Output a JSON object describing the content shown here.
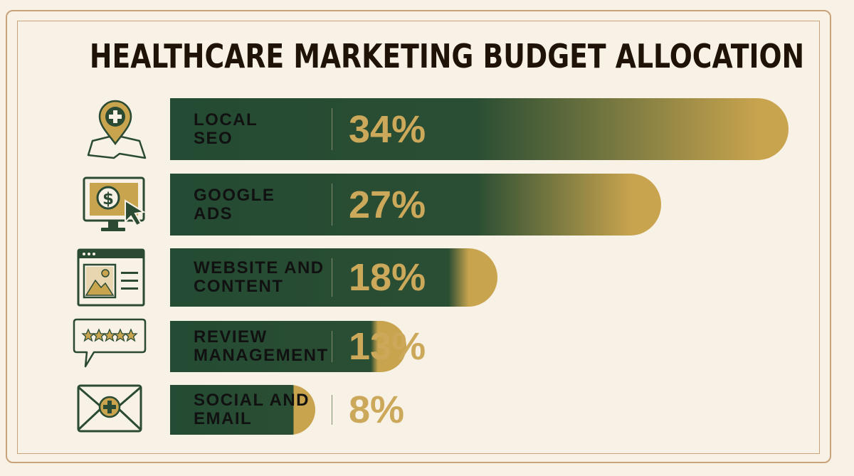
{
  "title": "HEALTHCARE MARKETING BUDGET ALLOCATION",
  "colors": {
    "background": "#f8f1e5",
    "bar_dark": "#244b33",
    "bar_gold": "#c9a44e",
    "value_text": "#cca85a",
    "icon_green": "#2a4a33",
    "frame": "#c9a27a"
  },
  "chart_data": {
    "type": "bar",
    "orientation": "horizontal",
    "title": "HEALTHCARE MARKETING BUDGET ALLOCATION",
    "categories": [
      "LOCAL SEO",
      "GOOGLE ADS",
      "WEBSITE AND CONTENT",
      "REVIEW MANAGEMENT",
      "SOCIAL AND EMAIL"
    ],
    "values": [
      34,
      27,
      18,
      13,
      8
    ],
    "value_labels": [
      "34%",
      "27%",
      "18%",
      "13%",
      "8%"
    ],
    "label_lines": [
      [
        "LOCAL",
        "SEO"
      ],
      [
        "GOOGLE",
        "ADS"
      ],
      [
        "WEBSITE AND",
        "CONTENT"
      ],
      [
        "REVIEW",
        "MANAGEMENT"
      ],
      [
        "SOCIAL AND",
        "EMAIL"
      ]
    ],
    "icons": [
      "map-pin-medical-icon",
      "monitor-dollar-cursor-icon",
      "browser-window-image-icon",
      "speech-bubble-stars-icon",
      "envelope-medical-icon"
    ],
    "unit": "%"
  }
}
